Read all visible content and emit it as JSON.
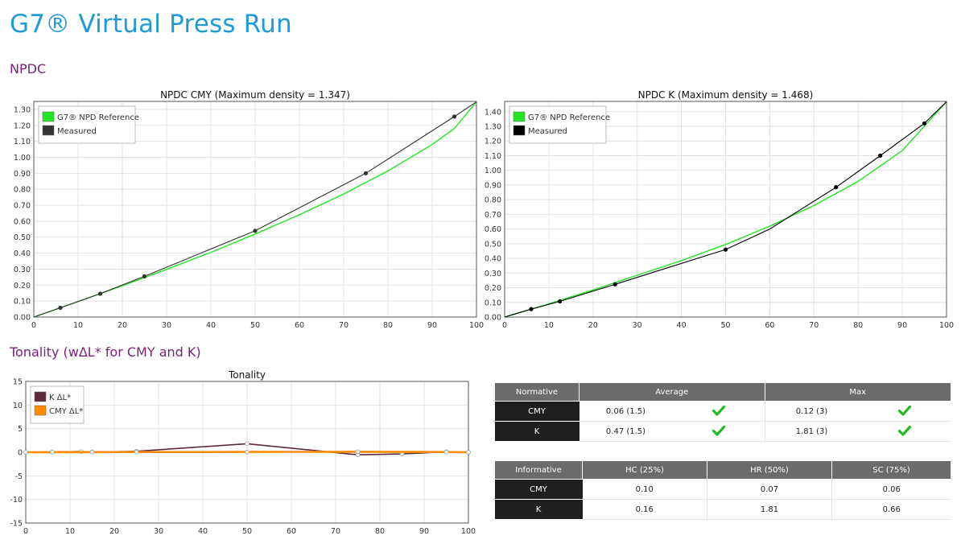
{
  "page": {
    "title": "G7® Virtual Press Run",
    "section_npdc": "NPDC",
    "section_tonality": "Tonality (wΔL* for CMY and K)"
  },
  "colors": {
    "reference": "#22e622",
    "measured_cmy": "#333333",
    "measured_k": "#000000",
    "k_dl": "#5c2a3a",
    "cmy_dl": "#ff8c00",
    "check": "#22bb22",
    "title_blue": "#1e9ad6",
    "section_purple": "#7b1f7a"
  },
  "chart_data": [
    {
      "id": "npdc-cmy",
      "type": "line",
      "title": "NPDC CMY (Maximum density = 1.347)",
      "xlim": [
        0,
        100
      ],
      "ylim": [
        0,
        1.35
      ],
      "xticks": [
        0,
        10,
        20,
        30,
        40,
        50,
        60,
        70,
        80,
        90,
        100
      ],
      "yticks": [
        0.0,
        0.1,
        0.2,
        0.3,
        0.4,
        0.5,
        0.6,
        0.7,
        0.8,
        0.9,
        1.0,
        1.1,
        1.2,
        1.3
      ],
      "grid": true,
      "legend_position": "top-left",
      "series": [
        {
          "name": "G7® NPD Reference",
          "color": "#22e622",
          "x": [
            0,
            10,
            20,
            30,
            40,
            50,
            60,
            70,
            80,
            90,
            95,
            100
          ],
          "y": [
            0,
            0.097,
            0.196,
            0.298,
            0.405,
            0.52,
            0.64,
            0.77,
            0.915,
            1.08,
            1.18,
            1.347
          ]
        },
        {
          "name": "Measured",
          "color": "#333333",
          "x": [
            0,
            6,
            15,
            25,
            50,
            75,
            95,
            100
          ],
          "y": [
            0,
            0.058,
            0.146,
            0.255,
            0.54,
            0.9,
            1.255,
            1.347
          ],
          "markers": [
            6,
            15,
            25,
            50,
            75,
            95
          ]
        }
      ]
    },
    {
      "id": "npdc-k",
      "type": "line",
      "title": "NPDC K (Maximum density = 1.468)",
      "xlim": [
        0,
        100
      ],
      "ylim": [
        0,
        1.47
      ],
      "xticks": [
        0,
        10,
        20,
        30,
        40,
        50,
        60,
        70,
        80,
        90,
        100
      ],
      "yticks": [
        0.0,
        0.1,
        0.2,
        0.3,
        0.4,
        0.5,
        0.6,
        0.7,
        0.8,
        0.9,
        1.0,
        1.1,
        1.2,
        1.3,
        1.4
      ],
      "grid": true,
      "legend_position": "top-left",
      "series": [
        {
          "name": "G7® NPD Reference",
          "color": "#22e622",
          "x": [
            0,
            10,
            20,
            30,
            40,
            50,
            60,
            70,
            80,
            90,
            100
          ],
          "y": [
            0,
            0.09,
            0.185,
            0.285,
            0.385,
            0.495,
            0.62,
            0.76,
            0.925,
            1.135,
            1.468
          ]
        },
        {
          "name": "Measured",
          "color": "#000000",
          "x": [
            0,
            6,
            12.5,
            25,
            50,
            60,
            75,
            85,
            95,
            100
          ],
          "y": [
            0,
            0.054,
            0.107,
            0.223,
            0.46,
            0.6,
            0.885,
            1.1,
            1.32,
            1.468
          ],
          "markers": [
            6,
            12.5,
            25,
            50,
            75,
            85,
            95
          ]
        }
      ]
    },
    {
      "id": "tonality",
      "type": "line",
      "title": "Tonality",
      "xlim": [
        0,
        100
      ],
      "ylim": [
        -15,
        15
      ],
      "xticks": [
        0,
        10,
        20,
        30,
        40,
        50,
        60,
        70,
        80,
        90,
        100
      ],
      "yticks": [
        15,
        10,
        5,
        0,
        -5,
        -10,
        -15
      ],
      "grid": true,
      "legend_position": "top-left",
      "series": [
        {
          "name": "K ΔL*",
          "color": "#5c2a3a",
          "x": [
            0,
            6,
            12.5,
            15,
            25,
            50,
            75,
            85,
            95,
            100
          ],
          "y": [
            0,
            0.05,
            0.15,
            0.05,
            0.2,
            1.81,
            -0.55,
            -0.35,
            0.1,
            0
          ]
        },
        {
          "name": "CMY ΔL*",
          "color": "#ff8c00",
          "x": [
            0,
            6,
            15,
            25,
            50,
            75,
            95,
            100
          ],
          "y": [
            0,
            0.02,
            0.03,
            0.05,
            0.06,
            0.1,
            0.05,
            0
          ]
        }
      ]
    }
  ],
  "normative_table": {
    "headers": [
      "Normative",
      "Average",
      "Max"
    ],
    "rows": [
      {
        "label": "CMY",
        "average": "0.06 (1.5)",
        "max": "0.12 (3)"
      },
      {
        "label": "K",
        "average": "0.47 (1.5)",
        "max": "1.81 (3)"
      }
    ]
  },
  "informative_table": {
    "headers": [
      "Informative",
      "HC (25%)",
      "HR (50%)",
      "SC (75%)"
    ],
    "rows": [
      {
        "label": "CMY",
        "hc": "0.10",
        "hr": "0.07",
        "sc": "0.06"
      },
      {
        "label": "K",
        "hc": "0.16",
        "hr": "1.81",
        "sc": "0.66"
      }
    ]
  }
}
